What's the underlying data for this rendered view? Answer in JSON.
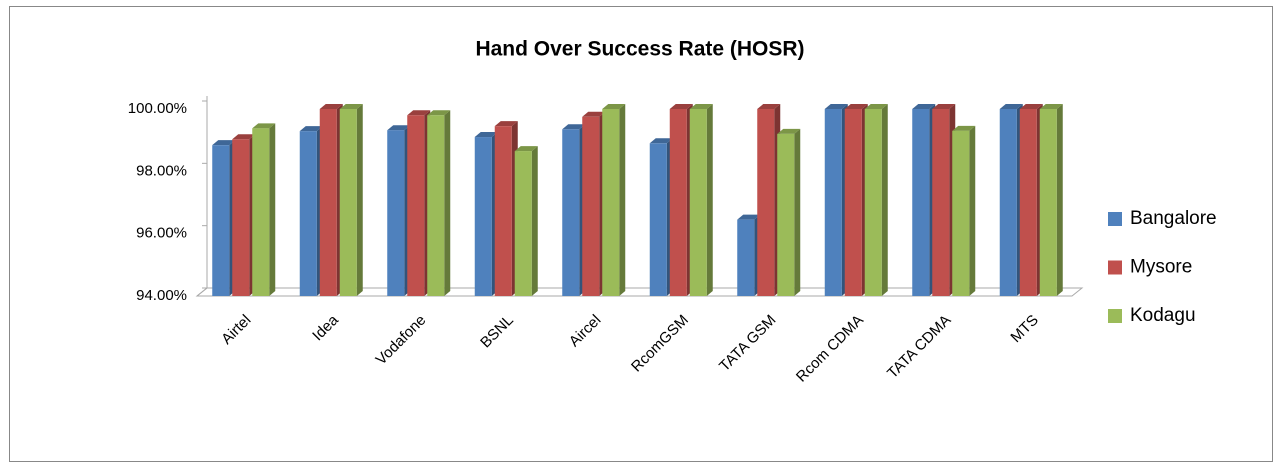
{
  "chart_data": {
    "type": "bar3d",
    "title": "Hand Over Success Rate (HOSR)",
    "categories": [
      "Airtel",
      "Idea",
      "Vodafone",
      "BSNL",
      "Aircel",
      "RcomGSM",
      "TATA GSM",
      "Rcom CDMA",
      "TATA CDMA",
      "MTS"
    ],
    "series": [
      {
        "name": "Bangalore",
        "color": "#4f81bd",
        "values": [
          98.84,
          99.29,
          99.32,
          99.1,
          99.35,
          98.9,
          96.45,
          100,
          100,
          100
        ]
      },
      {
        "name": "Mysore",
        "color": "#c0504d",
        "values": [
          99.03,
          100,
          99.8,
          99.45,
          99.75,
          100,
          100,
          100,
          100,
          100
        ]
      },
      {
        "name": "Kodagu",
        "color": "#9bbb59",
        "values": [
          99.38,
          100,
          99.8,
          98.65,
          100,
          100,
          99.2,
          100,
          99.3,
          100
        ]
      }
    ],
    "ylim": [
      94,
      100
    ],
    "yticks": [
      {
        "value": 94,
        "label": "94.00%"
      },
      {
        "value": 96,
        "label": "96.00%"
      },
      {
        "value": 98,
        "label": "98.00%"
      },
      {
        "value": 100,
        "label": "100.00%"
      }
    ],
    "legend": "right"
  }
}
